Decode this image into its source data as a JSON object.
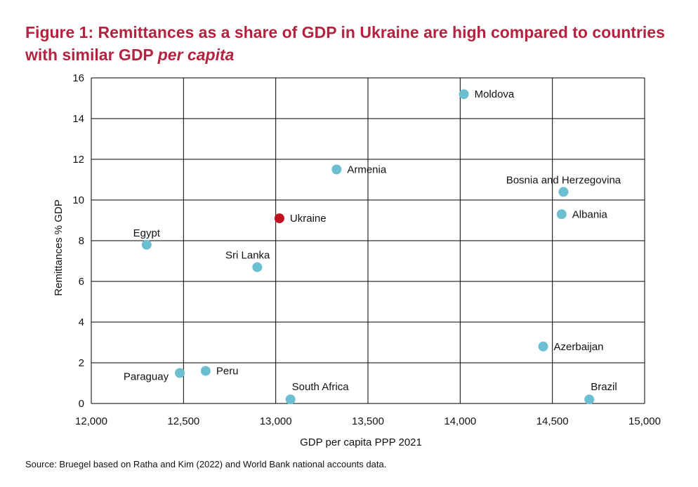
{
  "title_main": "Figure 1: Remittances as a share of GDP in Ukraine are high compared to countries with similar GDP",
  "title_em": "per capita",
  "source": "Source: Bruegel based on Ratha and Kim (2022) and World Bank national accounts data.",
  "chart_data": {
    "type": "scatter",
    "xlabel": "GDP per capita PPP 2021",
    "ylabel": "Remittances % GDP",
    "xlim": [
      12000,
      15000
    ],
    "ylim": [
      0,
      16
    ],
    "x_ticks": [
      12000,
      12500,
      13000,
      13500,
      14000,
      14500,
      15000
    ],
    "x_tick_labels": [
      "12,000",
      "12,500",
      "13,000",
      "13,500",
      "14,000",
      "14,500",
      "15,000"
    ],
    "y_ticks": [
      0,
      2,
      4,
      6,
      8,
      10,
      12,
      14,
      16
    ],
    "y_tick_labels": [
      "0",
      "2",
      "4",
      "6",
      "8",
      "10",
      "12",
      "14",
      "16"
    ],
    "grid": true,
    "colors": {
      "default": "#6bbfd0",
      "highlight": "#c0101d"
    },
    "points": [
      {
        "label": "Moldova",
        "x": 14020,
        "y": 15.2,
        "label_pos": "right",
        "highlight": false
      },
      {
        "label": "Armenia",
        "x": 13330,
        "y": 11.5,
        "label_pos": "right",
        "highlight": false
      },
      {
        "label": "Bosnia and Herzegovina",
        "x": 14560,
        "y": 10.4,
        "label_pos": "above",
        "highlight": false
      },
      {
        "label": "Albania",
        "x": 14550,
        "y": 9.3,
        "label_pos": "right",
        "highlight": false
      },
      {
        "label": "Ukraine",
        "x": 13020,
        "y": 9.1,
        "label_pos": "right",
        "highlight": true
      },
      {
        "label": "Egypt",
        "x": 12300,
        "y": 7.8,
        "label_pos": "above",
        "highlight": false
      },
      {
        "label": "Sri Lanka",
        "x": 12900,
        "y": 6.7,
        "label_pos": "above-left",
        "highlight": false
      },
      {
        "label": "Azerbaijan",
        "x": 14450,
        "y": 2.8,
        "label_pos": "right",
        "highlight": false
      },
      {
        "label": "Paraguay",
        "x": 12480,
        "y": 1.5,
        "label_pos": "left",
        "highlight": false
      },
      {
        "label": "Peru",
        "x": 12620,
        "y": 1.6,
        "label_pos": "right",
        "highlight": false
      },
      {
        "label": "South Africa",
        "x": 13080,
        "y": 0.2,
        "label_pos": "above-right",
        "highlight": false
      },
      {
        "label": "Brazil",
        "x": 14700,
        "y": 0.2,
        "label_pos": "above-right",
        "highlight": false
      }
    ]
  }
}
